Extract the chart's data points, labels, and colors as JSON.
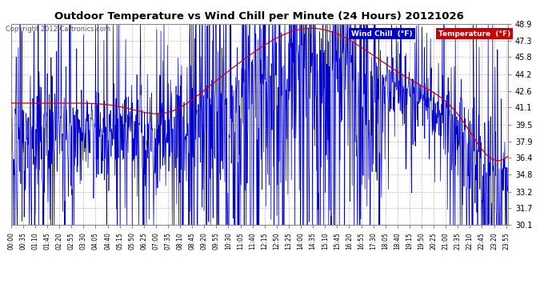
{
  "title": "Outdoor Temperature vs Wind Chill per Minute (24 Hours) 20121026",
  "copyright": "Copyright 2012 Cartronics.com",
  "ylim": [
    30.1,
    48.9
  ],
  "yticks": [
    30.1,
    31.7,
    33.2,
    34.8,
    36.4,
    37.9,
    39.5,
    41.1,
    42.6,
    44.2,
    45.8,
    47.3,
    48.9
  ],
  "background_color": "#ffffff",
  "plot_bg_color": "#ffffff",
  "grid_color": "#aaaaaa",
  "temp_color": "#cc0000",
  "wind_color": "#0000cc",
  "title_color": "#000000",
  "tick_color": "#000000",
  "figsize": [
    6.9,
    3.75
  ],
  "dpi": 100,
  "xtick_labels": [
    "00:00",
    "00:35",
    "01:10",
    "01:45",
    "02:20",
    "02:55",
    "03:30",
    "04:05",
    "04:40",
    "05:15",
    "05:50",
    "06:25",
    "07:00",
    "07:35",
    "08:10",
    "08:45",
    "09:20",
    "09:55",
    "10:30",
    "11:05",
    "11:40",
    "12:15",
    "12:50",
    "13:25",
    "14:00",
    "14:35",
    "15:10",
    "15:45",
    "16:20",
    "16:55",
    "17:30",
    "18:05",
    "18:40",
    "19:15",
    "19:50",
    "20:25",
    "21:00",
    "21:35",
    "22:10",
    "22:45",
    "23:20",
    "23:55"
  ]
}
